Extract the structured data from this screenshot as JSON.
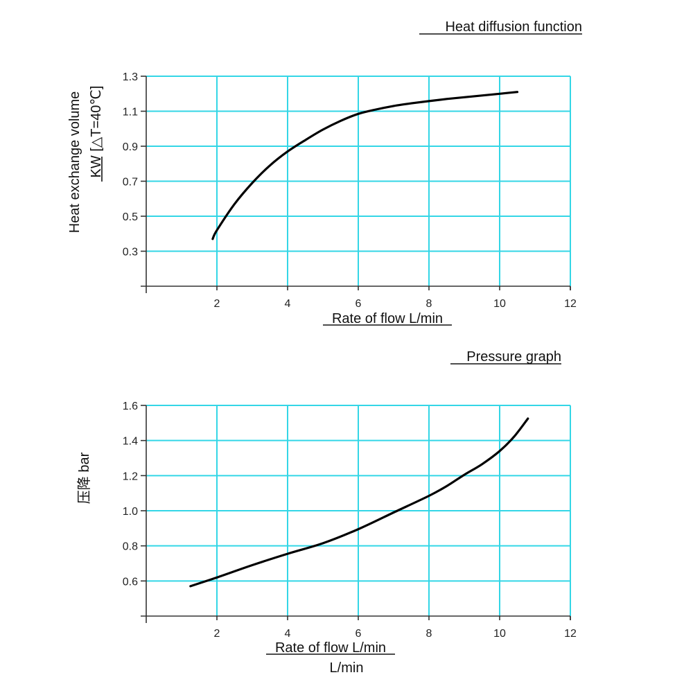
{
  "chart_data": [
    {
      "type": "line",
      "title": "Heat diffusion function",
      "xlabel": "Rate of flow L/min",
      "ylabel": "Heat exchange volume",
      "ylabel_unit": "KW [△T=40℃]",
      "xlim": [
        0,
        12
      ],
      "ylim": [
        0.1,
        1.3
      ],
      "xticks": [
        "2",
        "4",
        "6",
        "8",
        "10",
        "12"
      ],
      "yticks": [
        "1.3",
        "1.1",
        "0.9",
        "0.7",
        "0.5",
        "0.3"
      ],
      "grid": true,
      "series": [
        {
          "x": [
            1.88,
            2.0,
            2.5,
            3.0,
            3.5,
            4.0,
            4.5,
            5.0,
            5.5,
            6.0,
            6.5,
            7.0,
            7.5,
            8.0,
            8.5,
            9.0,
            9.5,
            10.0,
            10.5
          ],
          "y": [
            0.37,
            0.42,
            0.57,
            0.69,
            0.79,
            0.87,
            0.935,
            0.995,
            1.045,
            1.085,
            1.11,
            1.13,
            1.145,
            1.158,
            1.17,
            1.18,
            1.19,
            1.2,
            1.21
          ]
        }
      ]
    },
    {
      "type": "line",
      "title": "Pressure graph",
      "xlabel": "Rate of flow L/min",
      "xlabel2": "L/min",
      "ylabel": "压降 bar",
      "xlim": [
        0,
        12
      ],
      "ylim": [
        0.4,
        1.6
      ],
      "xticks": [
        "2",
        "4",
        "6",
        "8",
        "10",
        "12"
      ],
      "yticks": [
        "1.6",
        "1.4",
        "1.2",
        "1.0",
        "0.8",
        "0.6"
      ],
      "grid": true,
      "series": [
        {
          "x": [
            1.25,
            2.0,
            3.0,
            4.0,
            5.0,
            6.0,
            7.0,
            8.0,
            8.5,
            9.0,
            9.5,
            10.0,
            10.4,
            10.8
          ],
          "y": [
            0.57,
            0.62,
            0.69,
            0.755,
            0.815,
            0.895,
            0.99,
            1.085,
            1.14,
            1.205,
            1.265,
            1.34,
            1.42,
            1.525
          ]
        }
      ]
    }
  ]
}
